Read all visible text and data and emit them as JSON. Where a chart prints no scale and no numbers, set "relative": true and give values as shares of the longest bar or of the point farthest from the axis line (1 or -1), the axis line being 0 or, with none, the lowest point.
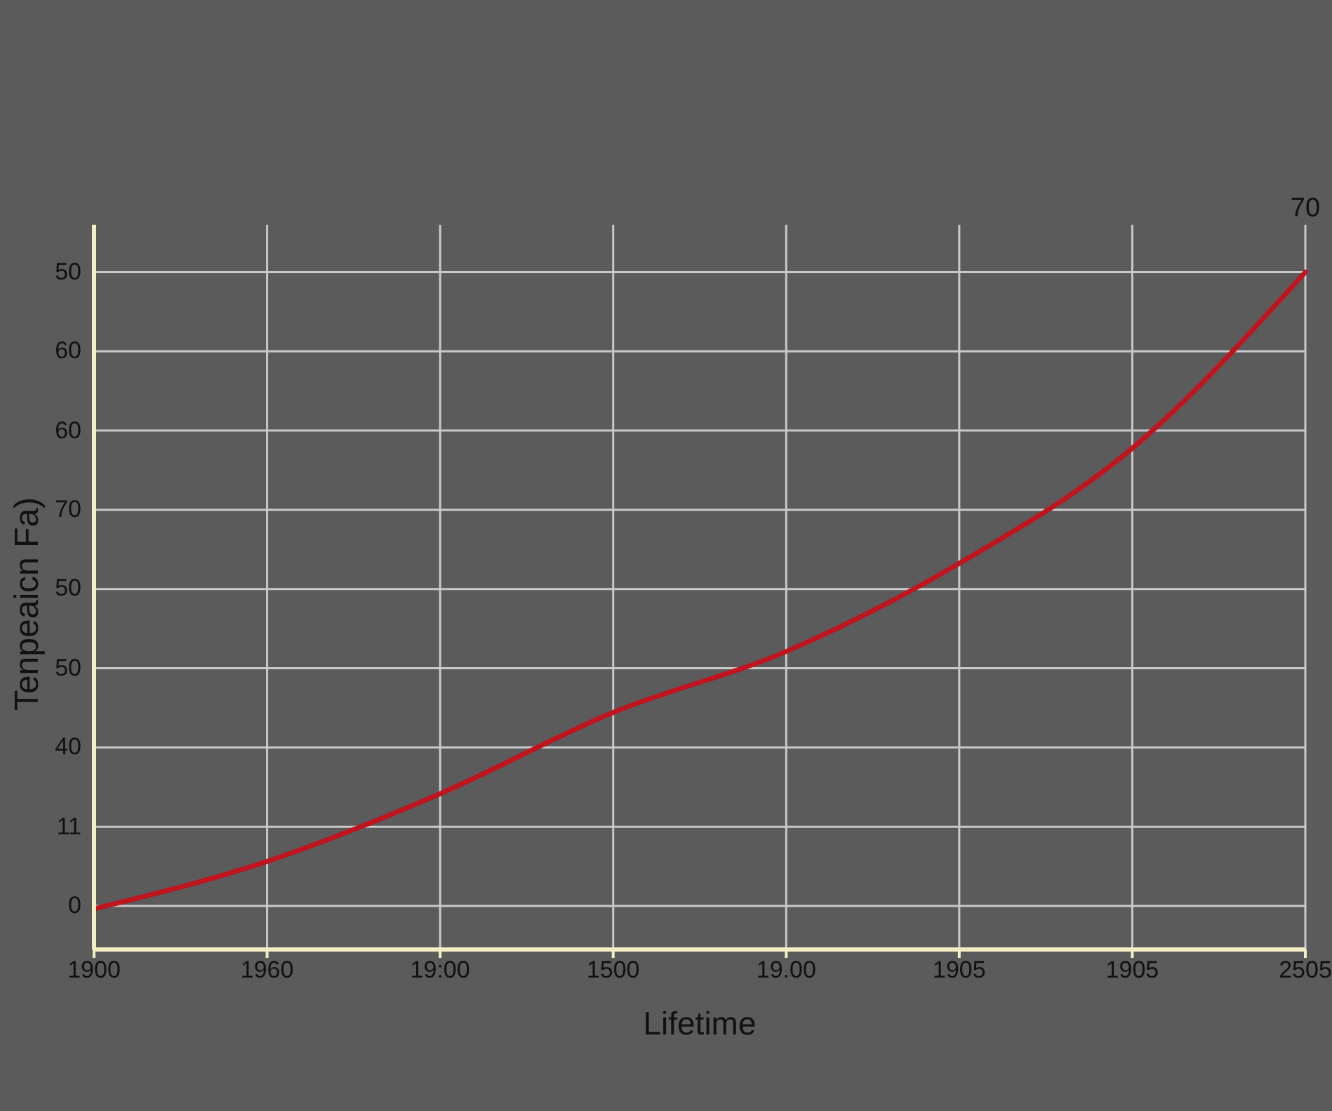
{
  "chart_data": {
    "type": "line",
    "relative": true,
    "xlabel": "Lifetime",
    "ylabel": "Tenpeaicn Fa)",
    "categories": [
      "1900",
      "1960",
      "19:00",
      "1500",
      "19.00",
      "1905",
      "1905",
      "2505"
    ],
    "series": [
      {
        "color": "#c0141e",
        "values": [
          0.06,
          0.13,
          0.23,
          0.35,
          0.44,
          0.57,
          0.74,
          1
        ]
      }
    ],
    "annotations": [
      "0",
      "11",
      "40",
      "50",
      "50",
      "70",
      "60",
      "60",
      "50",
      {
        "text": "70",
        "x": "2505",
        "y": 1
      }
    ],
    "grid": true,
    "line_style": "solid"
  }
}
